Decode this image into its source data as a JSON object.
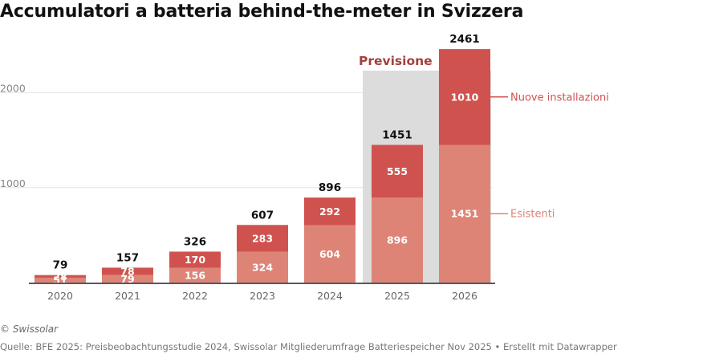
{
  "title": "Accumulatori a batteria behind-the-meter in Svizzera",
  "credit": "© Swissolar",
  "source": "Quelle: BFE 2025: Preisbeobachtungsstudie 2024, Swissolar Mitgliederumfrage Batteriespeicher Nov 2025 • Erstellt mit Datawrapper",
  "colors": {
    "existing": "#de8477",
    "new": "#d0524f",
    "forecast_bg": "#dcdcdc",
    "forecast_label": "#a3403b",
    "gridline": "#e6e6e6",
    "tick_text": "#888888",
    "axis": "#222222"
  },
  "chart_data": {
    "type": "bar",
    "stacked": true,
    "categories": [
      "2020",
      "2021",
      "2022",
      "2023",
      "2024",
      "2025",
      "2026"
    ],
    "series": [
      {
        "name": "Esistenti",
        "values": [
          51,
          79,
          156,
          324,
          604,
          896,
          1451
        ]
      },
      {
        "name": "Nuove installazioni",
        "values": [
          28,
          78,
          170,
          283,
          292,
          555,
          1010
        ]
      }
    ],
    "totals": [
      79,
      157,
      326,
      607,
      896,
      1451,
      2461
    ],
    "yticks": [
      1000,
      2000
    ],
    "ylim": [
      0,
      2500
    ],
    "forecast": {
      "label": "Previsione",
      "categories": [
        "2025",
        "2026"
      ]
    },
    "legend": "right of last bar",
    "grid": true
  }
}
